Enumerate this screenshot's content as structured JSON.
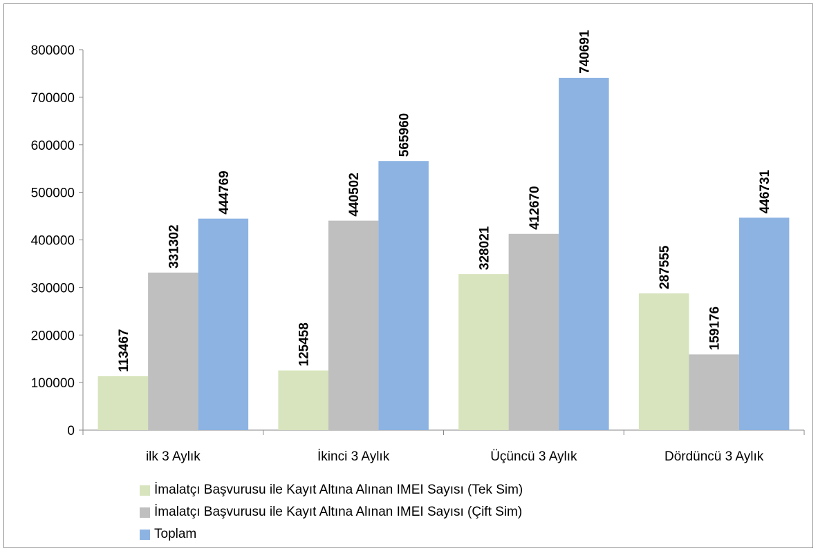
{
  "chart_data": {
    "type": "bar",
    "categories": [
      "ilk 3 Aylık",
      "İkinci 3 Aylık",
      "Üçüncü 3 Aylık",
      "Dördüncü 3 Aylık"
    ],
    "series": [
      {
        "name": "İmalatçı Başvurusu ile Kayıt Altına Alınan IMEI Sayısı (Tek Sim)",
        "color": "#d7e4bd",
        "values": [
          113467,
          125458,
          328021,
          287555
        ]
      },
      {
        "name": "İmalatçı Başvurusu ile Kayıt Altına Alınan IMEI Sayısı (Çift Sim)",
        "color": "#bfbfbf",
        "values": [
          331302,
          440502,
          412670,
          159176
        ]
      },
      {
        "name": "Toplam",
        "color": "#8db3e2",
        "values": [
          444769,
          565960,
          740691,
          446731
        ]
      }
    ],
    "ylim": [
      0,
      800000
    ],
    "yticks": [
      0,
      100000,
      200000,
      300000,
      400000,
      500000,
      600000,
      700000,
      800000
    ],
    "grid": false,
    "legend": "bottom",
    "data_labels": true
  }
}
